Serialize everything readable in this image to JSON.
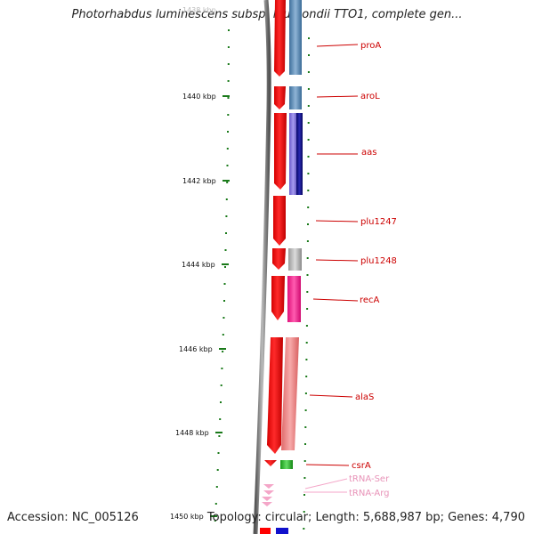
{
  "title": "Photorhabdus luminescens subsp. laumondii TTO1, complete gen...",
  "footer": {
    "accession": "Accession: NC_005126",
    "summary": "Topology: circular; Length: 5,688,987 bp; Genes: 4,790"
  },
  "ruler": {
    "ticks": [
      "1440 kbp",
      "1442 kbp",
      "1444 kbp",
      "1446 kbp",
      "1448 kbp",
      "1450 kbp"
    ],
    "cut_label": "1438 kbp"
  },
  "genes": [
    {
      "name": "proA",
      "strand": "-",
      "color": "#4682b4"
    },
    {
      "name": "aroL",
      "strand": "-",
      "color": "#4682b4"
    },
    {
      "name": "aas",
      "strand": "-",
      "color": "#1a1a8c"
    },
    {
      "name": "plu1247",
      "strand": "-",
      "color": "#ff0000"
    },
    {
      "name": "plu1248",
      "strand": "-",
      "color": "#b0b0b0"
    },
    {
      "name": "recA",
      "strand": "-",
      "color": "#ff1493"
    },
    {
      "name": "alaS",
      "strand": "-",
      "color": "#f08080"
    },
    {
      "name": "csrA",
      "strand": "-",
      "color": "#22aa22"
    },
    {
      "name": "tRNA-Ser",
      "strand": "-",
      "color": "#f4a6c8"
    },
    {
      "name": "tRNA-Arg",
      "strand": "-",
      "color": "#f4a6c8"
    }
  ],
  "colors": {
    "backbone": "#808080",
    "ruler_tick": "#1a7a1a",
    "feature_red": "#ff0000",
    "label": "#cc0000",
    "trna_label": "#e893b8"
  }
}
